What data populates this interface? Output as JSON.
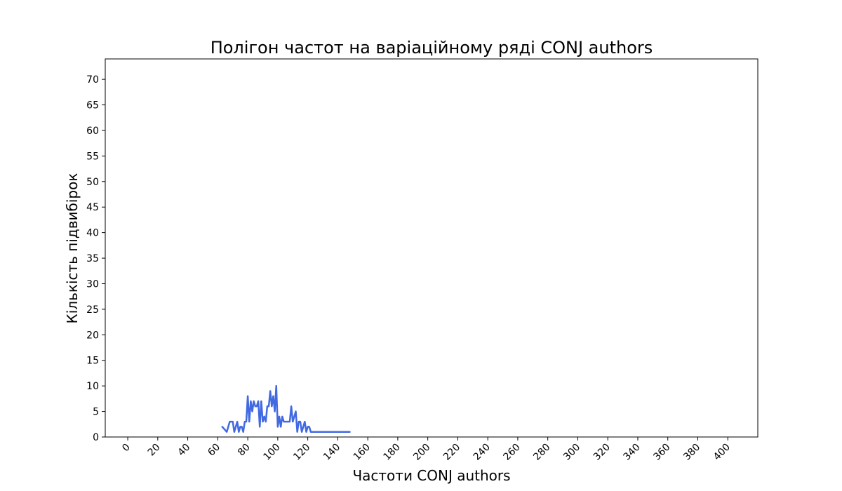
{
  "chart_data": {
    "type": "line",
    "title": "Полігон частот на варіаційному ряді CONJ authors",
    "xlabel": "Частоти CONJ authors",
    "ylabel": "Кількість підвибірок",
    "xlim": [
      -15,
      420
    ],
    "ylim": [
      0,
      74
    ],
    "xticks": [
      0,
      20,
      40,
      60,
      80,
      100,
      120,
      140,
      160,
      180,
      200,
      220,
      240,
      260,
      280,
      300,
      320,
      340,
      360,
      380,
      400
    ],
    "yticks": [
      0,
      5,
      10,
      15,
      20,
      25,
      30,
      35,
      40,
      45,
      50,
      55,
      60,
      65,
      70
    ],
    "x_tick_rotation_deg": 45,
    "grid": false,
    "legend": "none",
    "series": [
      {
        "color": "#4169e1",
        "x": [
          63,
          66,
          68,
          69,
          70,
          71,
          73,
          74,
          75,
          76,
          77,
          78,
          79,
          80,
          81,
          82,
          83,
          84,
          85,
          86,
          87,
          88,
          89,
          90,
          91,
          92,
          93,
          94,
          95,
          96,
          97,
          98,
          99,
          100,
          101,
          102,
          103,
          104,
          105,
          106,
          107,
          108,
          109,
          110,
          111,
          112,
          113,
          114,
          115,
          116,
          117,
          118,
          119,
          120,
          121,
          122,
          148
        ],
        "y": [
          2,
          1,
          3,
          3,
          3,
          1,
          3,
          1,
          2,
          2,
          1,
          3,
          3,
          8,
          3,
          7,
          5,
          7,
          6,
          6,
          7,
          2,
          7,
          3,
          4,
          3,
          6,
          6,
          9,
          6,
          8,
          5,
          10,
          2,
          4,
          2,
          4,
          3,
          3,
          3,
          3,
          3,
          6,
          3,
          4,
          5,
          1,
          3,
          3,
          1,
          2,
          3,
          1,
          2,
          2,
          1,
          1
        ]
      }
    ]
  }
}
